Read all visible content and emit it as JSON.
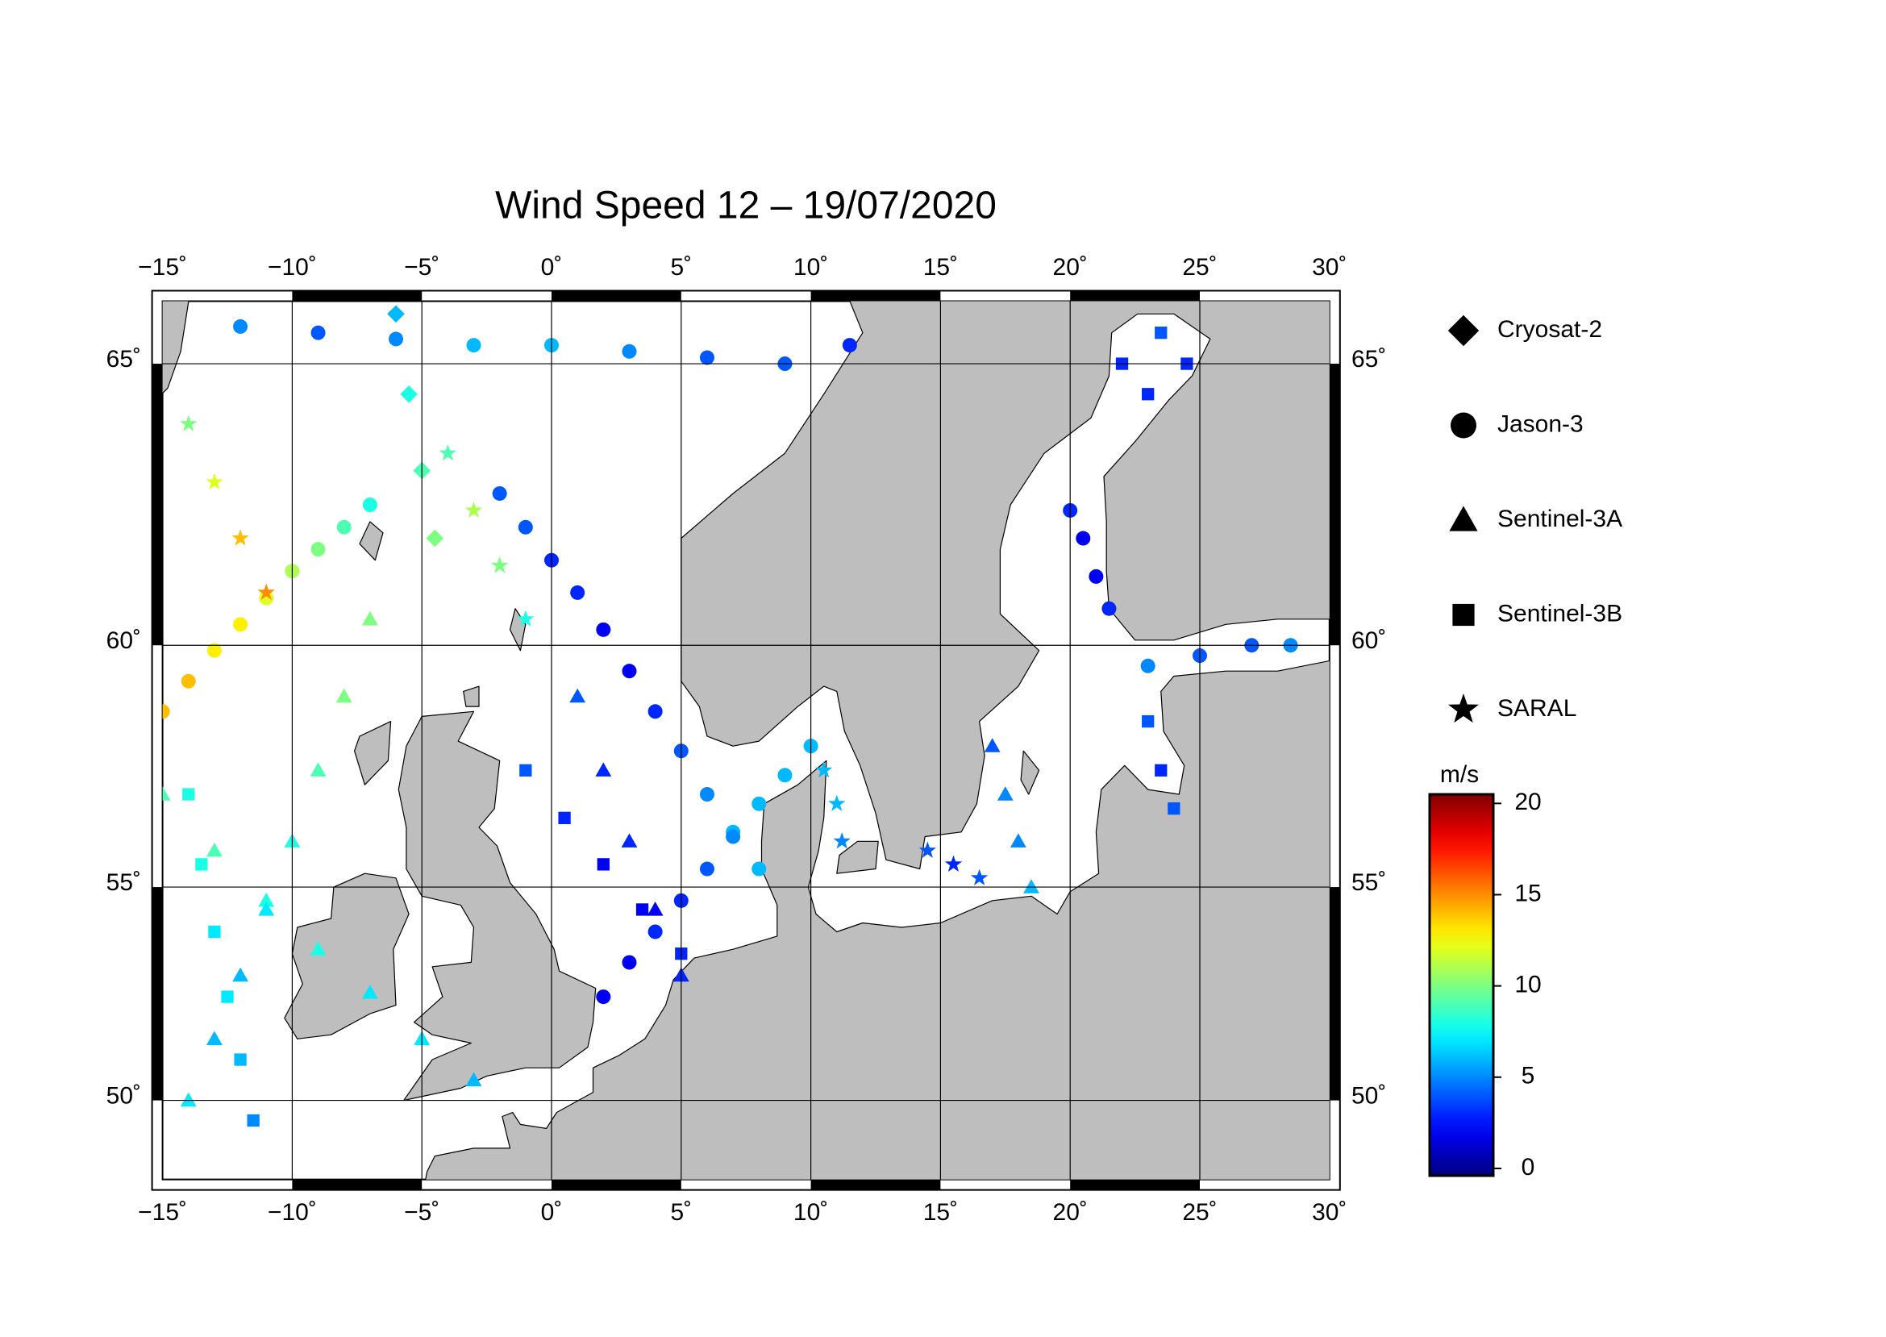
{
  "chart_data": {
    "type": "map",
    "title": "Wind Speed 12 – 19/07/2020",
    "xlim": [
      -15,
      30
    ],
    "ylim": [
      48,
      66
    ],
    "projection": "mercator",
    "grid": true,
    "xticks": [
      {
        "value": -15,
        "label": "−15˚"
      },
      {
        "value": -10,
        "label": "−10˚"
      },
      {
        "value": -5,
        "label": "−5˚"
      },
      {
        "value": 0,
        "label": "0˚"
      },
      {
        "value": 5,
        "label": "5˚"
      },
      {
        "value": 10,
        "label": "10˚"
      },
      {
        "value": 15,
        "label": "15˚"
      },
      {
        "value": 20,
        "label": "20˚"
      },
      {
        "value": 25,
        "label": "25˚"
      },
      {
        "value": 30,
        "label": "30˚"
      }
    ],
    "yticks": [
      {
        "value": 50,
        "label": "50˚"
      },
      {
        "value": 55,
        "label": "55˚"
      },
      {
        "value": 60,
        "label": "60˚"
      },
      {
        "value": 65,
        "label": "65˚"
      }
    ],
    "colorbar": {
      "label": "m/s",
      "clim": [
        -0.4,
        20.5
      ],
      "ticks": [
        0,
        5,
        10,
        15,
        20
      ],
      "colormap": "jet"
    },
    "series": [
      {
        "name": "Cryosat-2",
        "marker": "diamond",
        "tracks": [
          [
            [
              -6,
              65.8,
              6
            ],
            [
              -5.5,
              64.5,
              8
            ],
            [
              -5,
              63.2,
              9
            ],
            [
              -4.5,
              62,
              10
            ]
          ]
        ]
      },
      {
        "name": "Jason-3",
        "marker": "circle",
        "tracks": [
          [
            [
              -15,
              58.7,
              14
            ],
            [
              -14,
              59.3,
              14
            ],
            [
              -13,
              59.9,
              13
            ],
            [
              -12,
              60.4,
              13
            ],
            [
              -11,
              60.9,
              12
            ],
            [
              -10,
              61.4,
              11
            ],
            [
              -9,
              61.8,
              10
            ],
            [
              -8,
              62.2,
              9
            ],
            [
              -7,
              62.6,
              8
            ]
          ],
          [
            [
              -2,
              62.8,
              4
            ],
            [
              -1,
              62.2,
              4
            ],
            [
              0,
              61.6,
              3
            ],
            [
              1,
              61,
              3
            ],
            [
              2,
              60.3,
              2
            ],
            [
              3,
              59.5,
              2
            ],
            [
              4,
              58.7,
              3
            ],
            [
              5,
              57.9,
              4
            ],
            [
              6,
              57,
              5
            ],
            [
              7,
              56.2,
              6
            ],
            [
              8,
              55.4,
              6
            ]
          ],
          [
            [
              2,
              52.5,
              2
            ],
            [
              3,
              53.3,
              2
            ],
            [
              4,
              54,
              3
            ],
            [
              5,
              54.7,
              3
            ],
            [
              6,
              55.4,
              4
            ],
            [
              7,
              56.1,
              5
            ],
            [
              8,
              56.8,
              6
            ],
            [
              9,
              57.4,
              6
            ],
            [
              10,
              58,
              6
            ]
          ],
          [
            [
              -12,
              65.6,
              5
            ],
            [
              -9,
              65.5,
              4
            ],
            [
              -6,
              65.4,
              5
            ],
            [
              -3,
              65.3,
              6
            ],
            [
              0,
              65.3,
              6
            ],
            [
              3,
              65.2,
              5
            ],
            [
              6,
              65.1,
              4
            ],
            [
              9,
              65,
              4
            ],
            [
              11.5,
              65.3,
              3
            ]
          ],
          [
            [
              20,
              62.5,
              3
            ],
            [
              20.5,
              62,
              2
            ],
            [
              21,
              61.3,
              2
            ],
            [
              21.5,
              60.7,
              3
            ]
          ],
          [
            [
              23,
              59.6,
              5
            ],
            [
              25,
              59.8,
              4
            ],
            [
              27,
              60,
              4
            ],
            [
              28.5,
              60,
              5
            ]
          ]
        ]
      },
      {
        "name": "Sentinel-3A",
        "marker": "triangle",
        "tracks": [
          [
            [
              -15,
              57,
              9
            ],
            [
              -13,
              55.8,
              9
            ],
            [
              -11,
              54.7,
              8
            ],
            [
              -9,
              53.6,
              8
            ],
            [
              -7,
              52.6,
              7
            ],
            [
              -5,
              51.5,
              7
            ],
            [
              -3,
              50.5,
              6
            ]
          ],
          [
            [
              -14,
              50,
              7
            ],
            [
              -13,
              51.5,
              6
            ],
            [
              -12,
              53,
              6
            ],
            [
              -11,
              54.5,
              7
            ],
            [
              -10,
              56,
              8
            ],
            [
              -9,
              57.5,
              9
            ],
            [
              -8,
              59,
              10
            ],
            [
              -7,
              60.5,
              10
            ]
          ],
          [
            [
              1,
              59,
              4
            ],
            [
              2,
              57.5,
              3
            ],
            [
              3,
              56,
              3
            ],
            [
              4,
              54.5,
              2
            ],
            [
              5,
              53,
              3
            ]
          ],
          [
            [
              17,
              58,
              4
            ],
            [
              17.5,
              57,
              5
            ],
            [
              18,
              56,
              5
            ],
            [
              18.5,
              55,
              6
            ]
          ]
        ]
      },
      {
        "name": "Sentinel-3B",
        "marker": "square",
        "tracks": [
          [
            [
              -14,
              57,
              8
            ],
            [
              -13.5,
              55.5,
              8
            ],
            [
              -13,
              54,
              7
            ],
            [
              -12.5,
              52.5,
              7
            ],
            [
              -12,
              51,
              6
            ],
            [
              -11.5,
              49.5,
              5
            ]
          ],
          [
            [
              -1,
              57.5,
              4
            ],
            [
              0.5,
              56.5,
              3
            ],
            [
              2,
              55.5,
              2
            ],
            [
              3.5,
              54.5,
              2
            ],
            [
              5,
              53.5,
              3
            ]
          ],
          [
            [
              22,
              65,
              3
            ],
            [
              23,
              64.5,
              3
            ],
            [
              23.5,
              65.5,
              4
            ],
            [
              24.5,
              65,
              3
            ]
          ],
          [
            [
              23,
              58.5,
              4
            ],
            [
              23.5,
              57.5,
              3
            ],
            [
              24,
              56.7,
              4
            ]
          ]
        ]
      },
      {
        "name": "SARAL",
        "marker": "star",
        "tracks": [
          [
            [
              -14,
              64,
              10
            ],
            [
              -13,
              63,
              12
            ],
            [
              -12,
              62,
              14
            ],
            [
              -11,
              61,
              15
            ]
          ],
          [
            [
              -4,
              63.5,
              9
            ],
            [
              -3,
              62.5,
              11
            ],
            [
              -2,
              61.5,
              10
            ],
            [
              -1,
              60.5,
              8
            ]
          ],
          [
            [
              14.5,
              55.8,
              4
            ],
            [
              15.5,
              55.5,
              3
            ],
            [
              16.5,
              55.2,
              4
            ]
          ],
          [
            [
              10.5,
              57.5,
              6
            ],
            [
              11,
              56.8,
              6
            ],
            [
              11.2,
              56,
              5
            ]
          ]
        ]
      }
    ]
  }
}
